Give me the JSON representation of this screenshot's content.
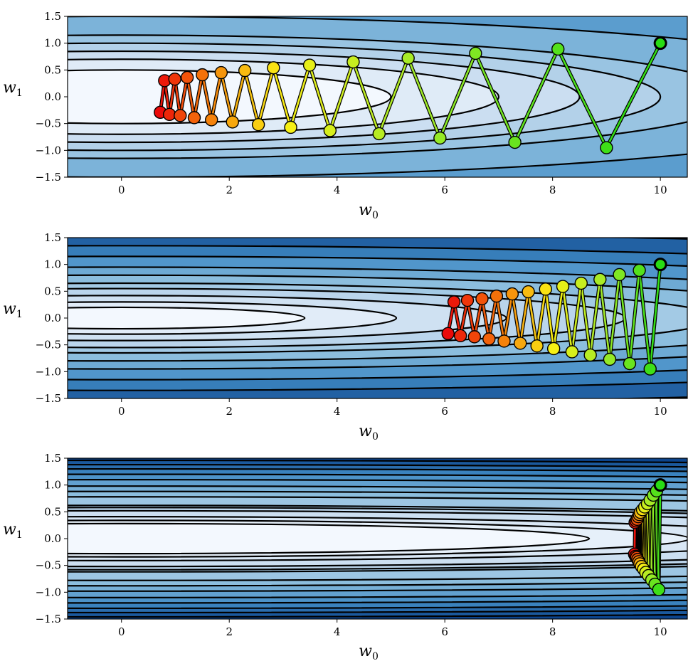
{
  "chart_data": [
    {
      "type": "contour",
      "xlabel": "w",
      "xlabel_sub": "0",
      "ylabel": "w",
      "ylabel_sub": "1",
      "xlim": [
        -1,
        10.5
      ],
      "ylim": [
        -1.5,
        1.5
      ],
      "xticks": [
        0,
        2,
        4,
        6,
        8,
        10
      ],
      "xtick_labels": [
        "0",
        "2",
        "4",
        "6",
        "8",
        "10"
      ],
      "yticks": [
        -1.5,
        -1.0,
        -0.5,
        0.0,
        0.5,
        1.0,
        1.5
      ],
      "ytick_labels": [
        "−1.5",
        "−1.0",
        "−0.5",
        "0.0",
        "0.5",
        "1.0",
        "1.5"
      ],
      "contour_axes": {
        "a": 10,
        "b": 1.0
      },
      "contour_levels": [
        0.5,
        0.7,
        0.85,
        1.0,
        1.15,
        1.5,
        2.0,
        2.5,
        3.0
      ],
      "colormap": "Blues",
      "path_colormap": "red-yellow-green",
      "path_points": {
        "x": [
          10.0,
          9.0,
          8.1,
          7.3,
          6.57,
          5.91,
          5.32,
          4.78,
          4.3,
          3.87,
          3.49,
          3.14,
          2.82,
          2.54,
          2.29,
          2.06,
          1.85,
          1.67,
          1.5,
          1.35,
          1.22,
          1.09,
          0.99,
          0.89,
          0.8,
          0.72
        ],
        "y": [
          1.0,
          -0.95,
          0.89,
          -0.85,
          0.81,
          -0.77,
          0.72,
          -0.69,
          0.65,
          -0.63,
          0.59,
          -0.57,
          0.54,
          -0.52,
          0.49,
          -0.47,
          0.45,
          -0.43,
          0.41,
          -0.39,
          0.36,
          -0.35,
          0.33,
          -0.33,
          0.3,
          -0.29
        ]
      }
    },
    {
      "type": "contour",
      "xlabel": "w",
      "xlabel_sub": "0",
      "ylabel": "w",
      "ylabel_sub": "1",
      "xlim": [
        -1,
        10.5
      ],
      "ylim": [
        -1.5,
        1.5
      ],
      "xticks": [
        0,
        2,
        4,
        6,
        8,
        10
      ],
      "xtick_labels": [
        "0",
        "2",
        "4",
        "6",
        "8",
        "10"
      ],
      "yticks": [
        -1.5,
        -1.0,
        -0.5,
        0.0,
        0.5,
        1.0,
        1.5
      ],
      "ytick_labels": [
        "−1.5",
        "−1.0",
        "−0.5",
        "0.0",
        "0.5",
        "1.0",
        "1.5"
      ],
      "contour_axes": {
        "a": 17,
        "b": 1.0
      },
      "contour_levels": [
        0.2,
        0.3,
        0.42,
        0.55,
        0.65,
        0.8,
        0.95,
        1.15,
        1.35,
        1.6
      ],
      "colormap": "Blues",
      "path_colormap": "red-yellow-green",
      "path_points": {
        "x": [
          10.0,
          9.81,
          9.61,
          9.43,
          9.24,
          9.06,
          8.88,
          8.7,
          8.53,
          8.36,
          8.19,
          8.02,
          7.87,
          7.71,
          7.55,
          7.4,
          7.25,
          7.1,
          6.96,
          6.82,
          6.69,
          6.55,
          6.42,
          6.29,
          6.17,
          6.06
        ],
        "y": [
          1.0,
          -0.95,
          0.89,
          -0.85,
          0.81,
          -0.77,
          0.72,
          -0.69,
          0.65,
          -0.63,
          0.59,
          -0.57,
          0.54,
          -0.52,
          0.49,
          -0.47,
          0.45,
          -0.43,
          0.41,
          -0.39,
          0.36,
          -0.35,
          0.33,
          -0.33,
          0.3,
          -0.29
        ]
      }
    },
    {
      "type": "contour",
      "xlabel": "w",
      "xlabel_sub": "0",
      "ylabel": "w",
      "ylabel_sub": "1",
      "xlim": [
        -1,
        10.5
      ],
      "ylim": [
        -1.5,
        1.5
      ],
      "xticks": [
        0,
        2,
        4,
        6,
        8,
        10
      ],
      "xtick_labels": [
        "0",
        "2",
        "4",
        "6",
        "8",
        "10"
      ],
      "yticks": [
        -1.5,
        -1.0,
        -0.5,
        0.0,
        0.5,
        1.0,
        1.5
      ],
      "ytick_labels": [
        "−1.5",
        "−1.0",
        "−0.5",
        "0.0",
        "0.5",
        "1.0",
        "1.5"
      ],
      "contour_axes": {
        "a": 31,
        "b": 1.0
      },
      "contour_levels": [
        0.28,
        0.34,
        0.41,
        0.52,
        0.58,
        0.62,
        0.78,
        0.88,
        0.98,
        1.1,
        1.2,
        1.3,
        1.38,
        1.46
      ],
      "colormap": "Blues",
      "path_colormap": "red-yellow-green",
      "path_points": {
        "x": [
          10.0,
          9.97,
          9.93,
          9.9,
          9.87,
          9.84,
          9.81,
          9.78,
          9.76,
          9.73,
          9.71,
          9.69,
          9.67,
          9.65,
          9.63,
          9.62,
          9.61,
          9.6,
          9.59,
          9.58,
          9.57,
          9.56,
          9.55,
          9.54,
          9.53,
          9.52
        ],
        "y": [
          1.0,
          -0.95,
          0.89,
          -0.85,
          0.81,
          -0.77,
          0.72,
          -0.69,
          0.65,
          -0.63,
          0.59,
          -0.57,
          0.54,
          -0.52,
          0.49,
          -0.47,
          0.45,
          -0.43,
          0.41,
          -0.39,
          0.36,
          -0.35,
          0.33,
          -0.33,
          0.3,
          -0.29
        ]
      }
    }
  ]
}
